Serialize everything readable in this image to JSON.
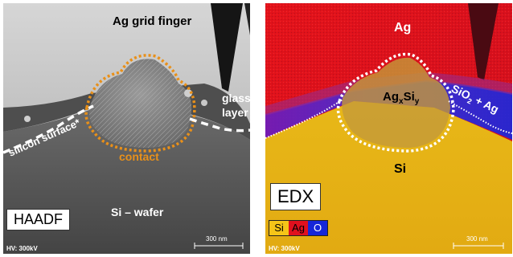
{
  "haadf": {
    "title_box": "HAADF",
    "ag_grid_finger": "Ag grid finger",
    "glass_layer_line1": "glass",
    "glass_layer_line2": "layer",
    "silicon_surface": "silicon surface*",
    "contact": "contact",
    "si_wafer": "Si – wafer",
    "hv": "HV: 300kV",
    "scale": "300 nm"
  },
  "edx": {
    "title_box": "EDX",
    "ag": "Ag",
    "agxsiy_base1": "Ag",
    "agxsiy_sub1": "x",
    "agxsiy_base2": "Si",
    "agxsiy_sub2": "y",
    "sio2_ag_a": "SiO",
    "sio2_ag_sub": "2",
    "sio2_ag_b": " + Ag",
    "si": "Si",
    "hv": "HV: 300kV",
    "scale": "300 nm",
    "legend": [
      {
        "label": "Si",
        "color": "#f5c518",
        "text": "#000000"
      },
      {
        "label": "Ag",
        "color": "#e0101e",
        "text": "#000000"
      },
      {
        "label": "O",
        "color": "#1626d8",
        "text": "#ffffff"
      }
    ]
  },
  "colors": {
    "contact_outline": "#e8901a",
    "interface_line": "#ffffff"
  }
}
